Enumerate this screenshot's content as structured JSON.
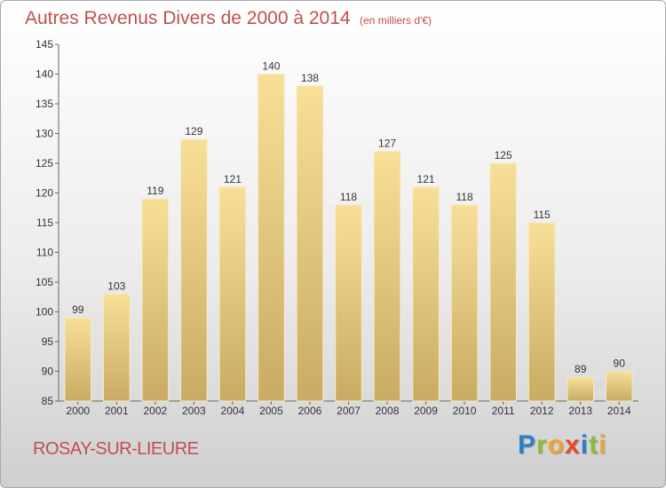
{
  "chart_data": {
    "type": "bar",
    "title": "Autres Revenus Divers de 2000 à 2014",
    "unit_label": "(en milliers d'€)",
    "categories": [
      "2000",
      "2001",
      "2002",
      "2003",
      "2004",
      "2005",
      "2006",
      "2007",
      "2008",
      "2009",
      "2010",
      "2011",
      "2012",
      "2013",
      "2014"
    ],
    "values": [
      99,
      103,
      119,
      129,
      121,
      140,
      138,
      118,
      127,
      121,
      118,
      125,
      115,
      89,
      90
    ],
    "ylim": [
      85,
      145
    ],
    "yticks": [
      85,
      90,
      95,
      100,
      105,
      110,
      115,
      120,
      125,
      130,
      135,
      140,
      145
    ],
    "grid": false,
    "bar_color": "#e8cf88"
  },
  "footer": {
    "place": "ROSAY-SUR-LIEURE",
    "brand_letters": [
      {
        "ch": "P",
        "color": "#2e7fc9"
      },
      {
        "ch": "r",
        "color": "#8cbd3a"
      },
      {
        "ch": "o",
        "color": "#f0a22e"
      },
      {
        "ch": "x",
        "color": "#e8452f"
      },
      {
        "ch": "i",
        "color": "#2e7fc9"
      },
      {
        "ch": "t",
        "color": "#8cbd3a"
      },
      {
        "ch": "i",
        "color": "#f0a22e"
      }
    ]
  }
}
